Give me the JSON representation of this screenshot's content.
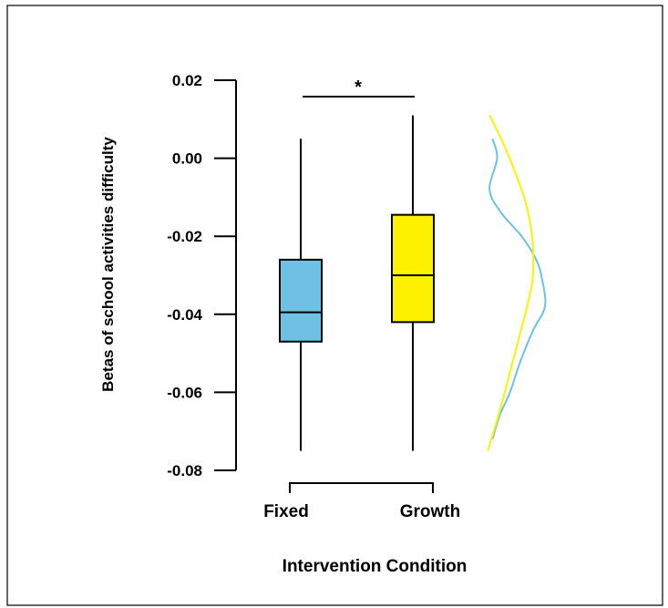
{
  "chart_data": {
    "type": "box",
    "title": "",
    "xlabel": "Intervention Condition",
    "ylabel": "Betas of school activities difficulty",
    "ylim": [
      -0.08,
      0.02
    ],
    "yticks": [
      0.02,
      0.0,
      -0.02,
      -0.04,
      -0.06,
      -0.08
    ],
    "ytick_labels": [
      "0.02",
      "0.00",
      "-0.02",
      "-0.04",
      "-0.06",
      "-0.08"
    ],
    "categories": [
      "Fixed",
      "Growth"
    ],
    "boxes": [
      {
        "category": "Fixed",
        "min": -0.075,
        "q1": -0.047,
        "median": -0.0395,
        "q3": -0.026,
        "max": 0.005,
        "color": "#6EC1E4"
      },
      {
        "category": "Growth",
        "min": -0.075,
        "q1": -0.042,
        "median": -0.03,
        "q3": -0.0145,
        "max": 0.011,
        "color": "#FFF200"
      }
    ],
    "significance": {
      "between": [
        "Fixed",
        "Growth"
      ],
      "label": "*"
    },
    "densities": [
      {
        "category": "Fixed",
        "color": "#6EC1E4",
        "points": [
          [
            0.005,
            0.1
          ],
          [
            0.0,
            0.18
          ],
          [
            -0.008,
            0.05
          ],
          [
            -0.014,
            0.25
          ],
          [
            -0.02,
            0.6
          ],
          [
            -0.026,
            0.85
          ],
          [
            -0.031,
            0.95
          ],
          [
            -0.038,
            1.0
          ],
          [
            -0.044,
            0.8
          ],
          [
            -0.052,
            0.58
          ],
          [
            -0.06,
            0.4
          ],
          [
            -0.066,
            0.22
          ],
          [
            -0.072,
            0.1
          ]
        ]
      },
      {
        "category": "Growth",
        "color": "#FFF200",
        "points": [
          [
            0.011,
            0.05
          ],
          [
            0.004,
            0.28
          ],
          [
            -0.004,
            0.5
          ],
          [
            -0.012,
            0.68
          ],
          [
            -0.02,
            0.78
          ],
          [
            -0.026,
            0.8
          ],
          [
            -0.032,
            0.78
          ],
          [
            -0.04,
            0.66
          ],
          [
            -0.048,
            0.52
          ],
          [
            -0.056,
            0.38
          ],
          [
            -0.064,
            0.24
          ],
          [
            -0.07,
            0.12
          ],
          [
            -0.075,
            0.02
          ]
        ]
      }
    ]
  }
}
